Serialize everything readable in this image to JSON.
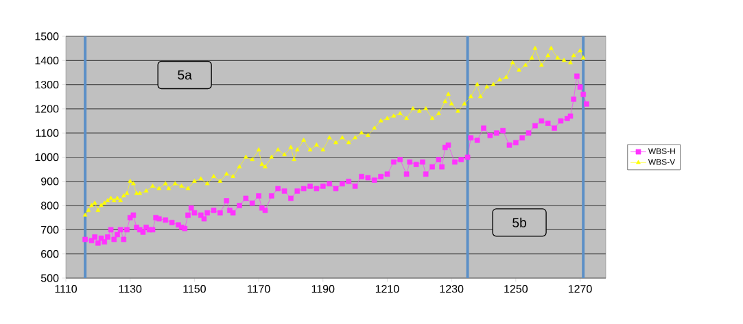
{
  "chart_data": {
    "type": "line",
    "xlim": [
      1110,
      1278
    ],
    "ylim": [
      500,
      1500
    ],
    "xticks": [
      1110,
      1130,
      1150,
      1170,
      1190,
      1210,
      1230,
      1250,
      1270
    ],
    "yticks": [
      500,
      600,
      700,
      800,
      900,
      1000,
      1100,
      1200,
      1300,
      1400,
      1500
    ],
    "grid": "y",
    "legend": "right",
    "line_style": "solid",
    "ref_lines": [
      {
        "axis": "x",
        "value": 1116,
        "color": "#5b8fc7"
      },
      {
        "axis": "x",
        "value": 1235,
        "color": "#5b8fc7"
      },
      {
        "axis": "x",
        "value": 1271,
        "color": "#5b8fc7"
      }
    ],
    "annotations": [
      "5a",
      "5b"
    ],
    "series": [
      {
        "name": "WBS-H",
        "color": "#ff33ff",
        "marker": "square",
        "x": [
          1116,
          1118,
          1119,
          1120,
          1121,
          1122,
          1123,
          1124,
          1125,
          1126,
          1127,
          1128,
          1129,
          1130,
          1131,
          1132,
          1133,
          1134,
          1135,
          1136,
          1137,
          1138,
          1139,
          1141,
          1143,
          1145,
          1146,
          1147,
          1148,
          1149,
          1150,
          1152,
          1153,
          1154,
          1156,
          1158,
          1160,
          1161,
          1162,
          1164,
          1166,
          1168,
          1170,
          1171,
          1172,
          1174,
          1176,
          1178,
          1180,
          1182,
          1184,
          1186,
          1188,
          1190,
          1192,
          1194,
          1196,
          1198,
          1200,
          1202,
          1204,
          1206,
          1208,
          1210,
          1212,
          1214,
          1216,
          1217,
          1219,
          1221,
          1222,
          1224,
          1226,
          1227,
          1228,
          1229,
          1231,
          1233,
          1235,
          1236,
          1238,
          1240,
          1242,
          1244,
          1246,
          1248,
          1250,
          1252,
          1254,
          1256,
          1258,
          1260,
          1262,
          1264,
          1266,
          1267,
          1268,
          1269,
          1270,
          1271,
          1272
        ],
        "values": [
          660,
          655,
          670,
          645,
          665,
          650,
          670,
          700,
          660,
          680,
          700,
          660,
          700,
          750,
          760,
          710,
          700,
          690,
          710,
          700,
          700,
          750,
          745,
          740,
          730,
          720,
          710,
          705,
          760,
          790,
          770,
          760,
          745,
          770,
          780,
          770,
          820,
          780,
          770,
          800,
          830,
          810,
          840,
          790,
          780,
          840,
          870,
          860,
          830,
          860,
          870,
          880,
          870,
          880,
          890,
          870,
          890,
          900,
          880,
          920,
          915,
          905,
          920,
          930,
          980,
          990,
          930,
          980,
          970,
          980,
          930,
          960,
          990,
          960,
          1040,
          1050,
          980,
          990,
          1000,
          1080,
          1070,
          1120,
          1090,
          1100,
          1110,
          1050,
          1060,
          1080,
          1100,
          1130,
          1150,
          1140,
          1120,
          1150,
          1160,
          1170,
          1240,
          1335,
          1290,
          1260,
          1220
        ]
      },
      {
        "name": "WBS-V",
        "color": "#ffff00",
        "marker": "triangle",
        "x": [
          1116,
          1117,
          1118,
          1119,
          1120,
          1121,
          1122,
          1123,
          1124,
          1125,
          1126,
          1127,
          1128,
          1129,
          1130,
          1131,
          1132,
          1133,
          1135,
          1137,
          1139,
          1141,
          1142,
          1144,
          1146,
          1148,
          1150,
          1152,
          1154,
          1156,
          1158,
          1160,
          1162,
          1164,
          1166,
          1168,
          1170,
          1171,
          1172,
          1174,
          1176,
          1178,
          1180,
          1181,
          1182,
          1184,
          1186,
          1188,
          1190,
          1192,
          1194,
          1196,
          1198,
          1200,
          1202,
          1204,
          1206,
          1208,
          1210,
          1212,
          1214,
          1216,
          1218,
          1220,
          1222,
          1224,
          1226,
          1228,
          1229,
          1230,
          1232,
          1234,
          1236,
          1238,
          1239,
          1241,
          1243,
          1245,
          1247,
          1249,
          1251,
          1253,
          1255,
          1256,
          1258,
          1260,
          1261,
          1263,
          1265,
          1267,
          1268,
          1270,
          1271
        ],
        "values": [
          760,
          780,
          800,
          810,
          780,
          800,
          810,
          820,
          830,
          820,
          830,
          820,
          840,
          850,
          900,
          890,
          850,
          850,
          860,
          880,
          870,
          890,
          870,
          890,
          880,
          870,
          900,
          910,
          890,
          920,
          900,
          930,
          920,
          960,
          1000,
          990,
          1030,
          970,
          960,
          1000,
          1030,
          1010,
          1040,
          990,
          1030,
          1070,
          1030,
          1050,
          1030,
          1080,
          1060,
          1080,
          1060,
          1080,
          1100,
          1090,
          1120,
          1150,
          1160,
          1170,
          1180,
          1160,
          1200,
          1190,
          1200,
          1160,
          1180,
          1230,
          1260,
          1220,
          1190,
          1220,
          1250,
          1300,
          1250,
          1290,
          1300,
          1320,
          1330,
          1390,
          1360,
          1380,
          1410,
          1450,
          1380,
          1420,
          1450,
          1410,
          1400,
          1390,
          1420,
          1440,
          1410
        ]
      }
    ]
  }
}
